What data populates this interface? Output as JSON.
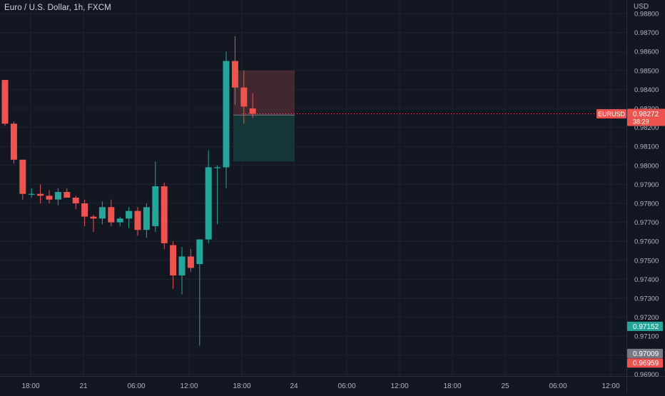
{
  "header": {
    "title": "Euro / U.S. Dollar, 1h, FXCM",
    "currency": "USD"
  },
  "colors": {
    "background": "#131722",
    "grid": "#1f2330",
    "up": "#26a69a",
    "down": "#ef5350",
    "axis_text": "#b2b5be",
    "stop_zone": "#4a2a31",
    "target_zone": "#163a38"
  },
  "price_labels": {
    "symbol": "EURUSD",
    "last_price": "0.98272",
    "countdown": "38:29",
    "marker_green": "0.97152",
    "marker_gray": "0.97009",
    "marker_red": "0.96959"
  },
  "chart_data": {
    "type": "candlestick",
    "y_axis": {
      "range": [
        0.969,
        0.988
      ],
      "ticks": [
        "0.98800",
        "0.98700",
        "0.98600",
        "0.98500",
        "0.98400",
        "0.98300",
        "0.98200",
        "0.98100",
        "0.98000",
        "0.97900",
        "0.97800",
        "0.97700",
        "0.97600",
        "0.97500",
        "0.97400",
        "0.97300",
        "0.97200",
        "0.97100",
        "0.97000",
        "0.96900"
      ]
    },
    "x_axis": {
      "ticks": [
        "18:00",
        "21",
        "06:00",
        "12:00",
        "18:00",
        "24",
        "06:00",
        "12:00",
        "18:00",
        "25",
        "06:00",
        "12:00"
      ]
    },
    "candles": [
      {
        "open": 0.9845,
        "high": 0.9845,
        "low": 0.9821,
        "close": 0.9822
      },
      {
        "open": 0.9822,
        "high": 0.9823,
        "low": 0.9801,
        "close": 0.9803
      },
      {
        "open": 0.9803,
        "high": 0.9803,
        "low": 0.9782,
        "close": 0.9785
      },
      {
        "open": 0.9785,
        "high": 0.9788,
        "low": 0.9783,
        "close": 0.9785
      },
      {
        "open": 0.9785,
        "high": 0.979,
        "low": 0.978,
        "close": 0.9784
      },
      {
        "open": 0.9784,
        "high": 0.9787,
        "low": 0.978,
        "close": 0.9782
      },
      {
        "open": 0.9782,
        "high": 0.9788,
        "low": 0.9779,
        "close": 0.9786
      },
      {
        "open": 0.9786,
        "high": 0.9788,
        "low": 0.9783,
        "close": 0.9783
      },
      {
        "open": 0.9783,
        "high": 0.9784,
        "low": 0.9777,
        "close": 0.978
      },
      {
        "open": 0.978,
        "high": 0.9782,
        "low": 0.9768,
        "close": 0.9773
      },
      {
        "open": 0.9773,
        "high": 0.9774,
        "low": 0.9765,
        "close": 0.9772
      },
      {
        "open": 0.9772,
        "high": 0.9781,
        "low": 0.9769,
        "close": 0.9778
      },
      {
        "open": 0.9778,
        "high": 0.9782,
        "low": 0.9768,
        "close": 0.977
      },
      {
        "open": 0.977,
        "high": 0.9773,
        "low": 0.9768,
        "close": 0.9772
      },
      {
        "open": 0.9772,
        "high": 0.9778,
        "low": 0.9767,
        "close": 0.9776
      },
      {
        "open": 0.9776,
        "high": 0.9778,
        "low": 0.9763,
        "close": 0.9766
      },
      {
        "open": 0.9766,
        "high": 0.978,
        "low": 0.9762,
        "close": 0.9778
      },
      {
        "open": 0.9768,
        "high": 0.9802,
        "low": 0.9765,
        "close": 0.9789
      },
      {
        "open": 0.9789,
        "high": 0.9791,
        "low": 0.9756,
        "close": 0.9759
      },
      {
        "open": 0.9758,
        "high": 0.976,
        "low": 0.9735,
        "close": 0.9742
      },
      {
        "open": 0.9742,
        "high": 0.9757,
        "low": 0.9732,
        "close": 0.9752
      },
      {
        "open": 0.9752,
        "high": 0.9756,
        "low": 0.9744,
        "close": 0.9746
      },
      {
        "open": 0.9748,
        "high": 0.9761,
        "low": 0.9705,
        "close": 0.9761
      },
      {
        "open": 0.9761,
        "high": 0.9808,
        "low": 0.9759,
        "close": 0.9799
      },
      {
        "open": 0.9799,
        "high": 0.98,
        "low": 0.9769,
        "close": 0.9799
      },
      {
        "open": 0.9799,
        "high": 0.986,
        "low": 0.9788,
        "close": 0.9855
      },
      {
        "open": 0.9855,
        "high": 0.9868,
        "low": 0.9832,
        "close": 0.9841
      },
      {
        "open": 0.9841,
        "high": 0.985,
        "low": 0.9822,
        "close": 0.9831
      },
      {
        "open": 0.983,
        "high": 0.9838,
        "low": 0.9825,
        "close": 0.98272
      }
    ],
    "position": {
      "stop": 0.985,
      "entry": 0.98265,
      "target": 0.9802
    }
  }
}
